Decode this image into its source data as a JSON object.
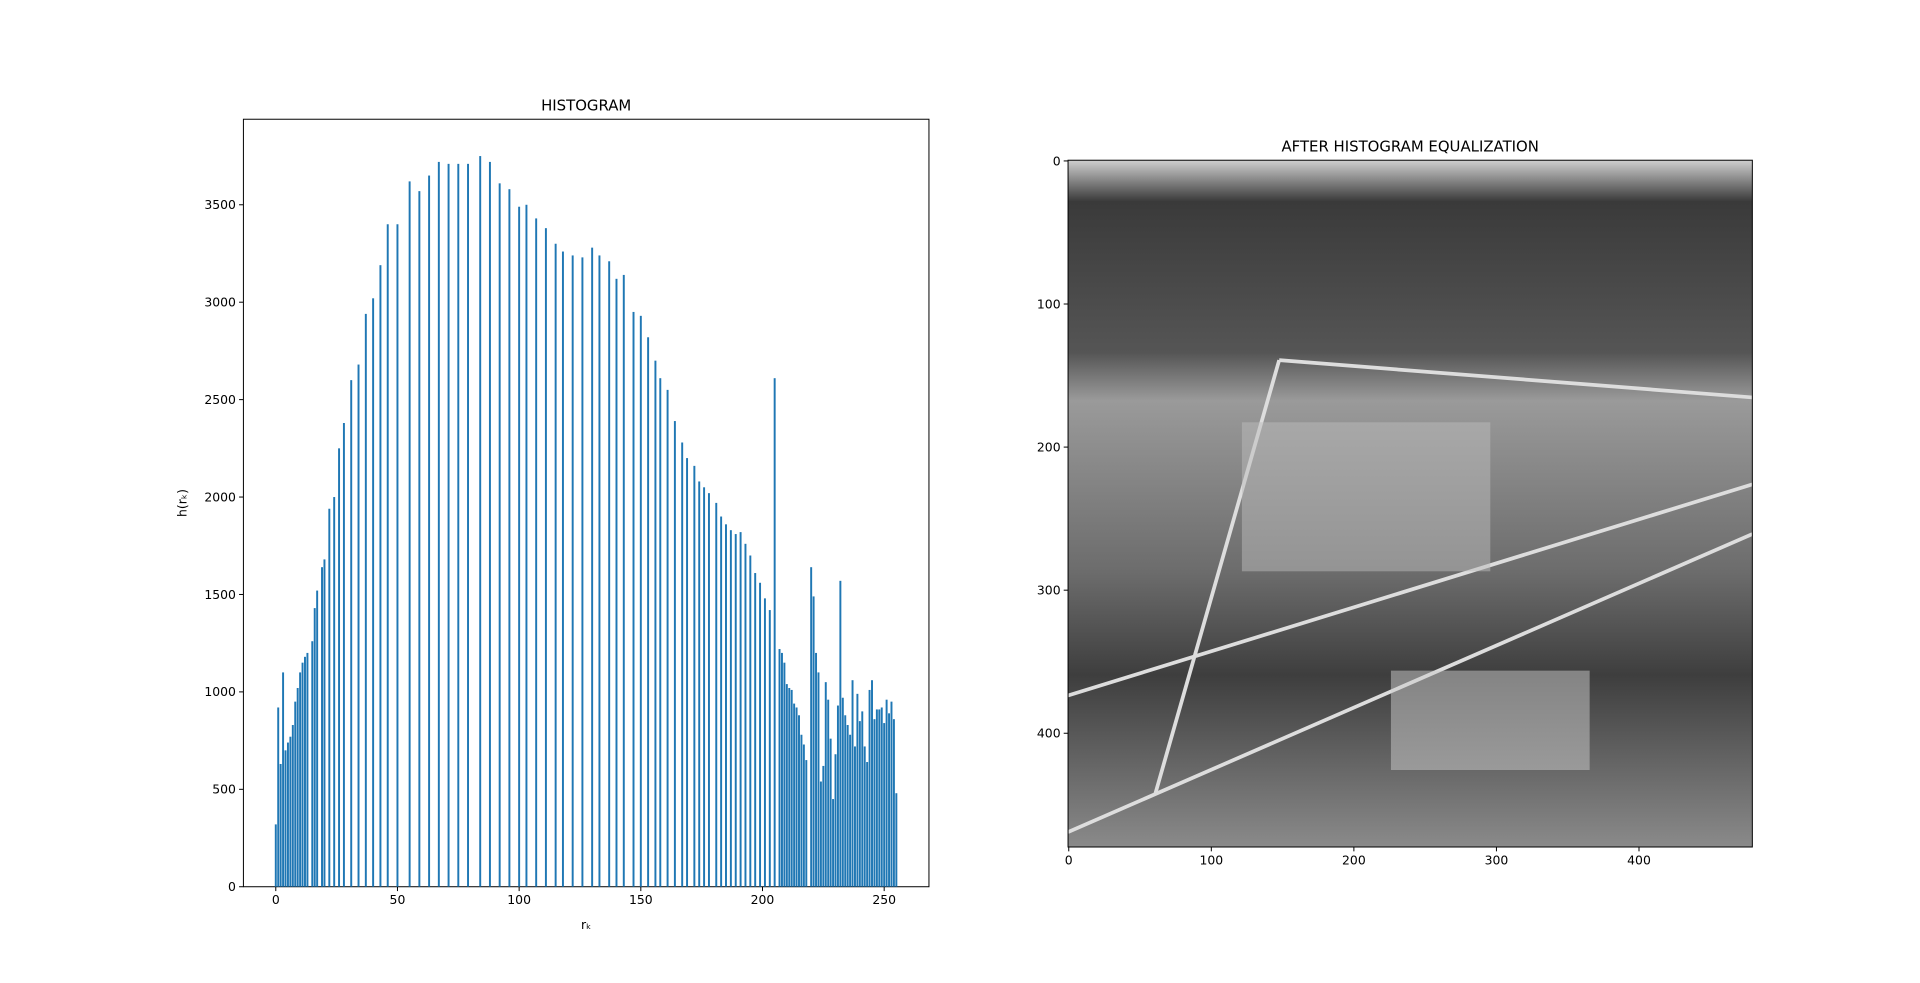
{
  "chart_data": [
    {
      "type": "bar",
      "title": "HISTOGRAM",
      "x_label": "rₖ",
      "y_label": "h(rₖ)",
      "color": "#1f77b4",
      "x": [
        0,
        1,
        2,
        3,
        4,
        5,
        6,
        7,
        8,
        9,
        10,
        11,
        12,
        13,
        15,
        16,
        17,
        19,
        20,
        22,
        24,
        26,
        28,
        31,
        34,
        37,
        40,
        43,
        46,
        50,
        55,
        59,
        63,
        67,
        71,
        75,
        79,
        84,
        88,
        92,
        96,
        100,
        103,
        107,
        111,
        115,
        118,
        122,
        126,
        130,
        133,
        137,
        140,
        143,
        147,
        150,
        153,
        156,
        158,
        161,
        164,
        167,
        169,
        172,
        174,
        176,
        178,
        181,
        183,
        185,
        187,
        189,
        191,
        193,
        195,
        197,
        199,
        201,
        203,
        205,
        207,
        208,
        209,
        210,
        211,
        212,
        213,
        214,
        215,
        216,
        217,
        218,
        220,
        221,
        222,
        223,
        224,
        225,
        226,
        227,
        228,
        229,
        230,
        231,
        232,
        233,
        234,
        235,
        236,
        237,
        238,
        239,
        240,
        241,
        242,
        243,
        244,
        245,
        246,
        247,
        248,
        249,
        250,
        251,
        252,
        253,
        254,
        255
      ],
      "values": [
        320,
        920,
        630,
        1100,
        700,
        740,
        770,
        830,
        950,
        1020,
        1100,
        1150,
        1180,
        1200,
        1260,
        1430,
        1520,
        1640,
        1680,
        1940,
        2000,
        2250,
        2380,
        2600,
        2680,
        2940,
        3020,
        3190,
        3400,
        3400,
        3620,
        3570,
        3650,
        3720,
        3710,
        3710,
        3710,
        3750,
        3720,
        3610,
        3580,
        3490,
        3500,
        3430,
        3380,
        3300,
        3260,
        3240,
        3230,
        3280,
        3240,
        3210,
        3120,
        3140,
        2950,
        2930,
        2820,
        2700,
        2610,
        2550,
        2390,
        2280,
        2200,
        2160,
        2080,
        2050,
        2020,
        1970,
        1900,
        1860,
        1830,
        1810,
        1820,
        1760,
        1700,
        1610,
        1560,
        1480,
        1420,
        2610,
        1220,
        1200,
        1150,
        1040,
        1020,
        1010,
        940,
        920,
        880,
        780,
        730,
        650,
        1640,
        1490,
        1200,
        1100,
        540,
        620,
        1050,
        960,
        760,
        450,
        680,
        930,
        1570,
        970,
        880,
        830,
        780,
        1060,
        720,
        990,
        850,
        900,
        720,
        640,
        1010,
        1060,
        860,
        910,
        910,
        920,
        840,
        960,
        890,
        950,
        860,
        480
      ],
      "xlim": [
        -13.3,
        268.4
      ],
      "xticks": [
        0,
        50,
        100,
        150,
        200,
        250
      ],
      "ylim": [
        0,
        3939
      ],
      "yticks": [
        0,
        500,
        1000,
        1500,
        2000,
        2500,
        3000,
        3500
      ]
    },
    {
      "type": "image",
      "title": "AFTER HISTOGRAM EQUALIZATION",
      "xlim": [
        -0.5,
        479.5
      ],
      "xticks": [
        0,
        100,
        200,
        300,
        400
      ],
      "ylim": [
        479.5,
        -0.5
      ],
      "yticks": [
        0,
        100,
        200,
        300,
        400
      ]
    }
  ]
}
